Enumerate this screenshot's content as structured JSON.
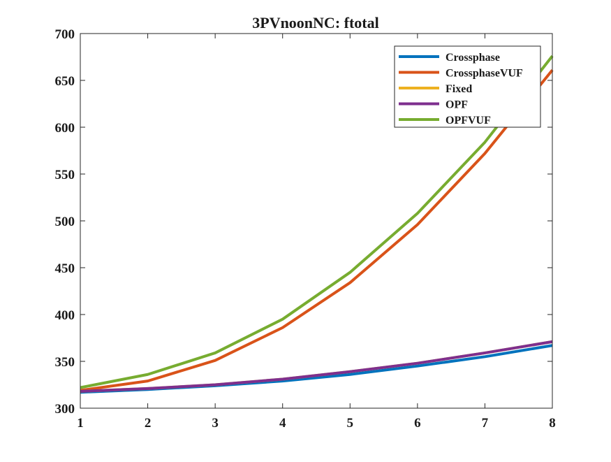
{
  "chart_data": {
    "type": "line",
    "title": "3PVnoonNC: ftotal",
    "xlabel": "",
    "ylabel": "",
    "x": [
      1,
      2,
      3,
      4,
      5,
      6,
      7,
      8
    ],
    "xlim": [
      1,
      8
    ],
    "ylim": [
      300,
      700
    ],
    "xticks": [
      1,
      2,
      3,
      4,
      5,
      6,
      7,
      8
    ],
    "yticks": [
      300,
      350,
      400,
      450,
      500,
      550,
      600,
      650,
      700
    ],
    "grid": false,
    "legend_placement": "top-right",
    "series": [
      {
        "name": "Crossphase",
        "color": "#0072BD",
        "values": [
          317,
          320,
          324,
          329,
          336,
          345,
          355,
          367
        ]
      },
      {
        "name": "CrossphaseVUF",
        "color": "#D95319",
        "values": [
          319,
          329,
          351,
          386,
          434,
          496,
          572,
          661
        ]
      },
      {
        "name": "Fixed",
        "color": "#EDB120",
        "values": [
          318,
          321,
          325,
          331,
          339,
          348,
          359,
          371
        ]
      },
      {
        "name": "OPF",
        "color": "#7E2F8E",
        "values": [
          318,
          321,
          325,
          331,
          339,
          348,
          359,
          371
        ]
      },
      {
        "name": "OPFVUF",
        "color": "#77AC30",
        "values": [
          322,
          336,
          359,
          395,
          445,
          508,
          584,
          676
        ]
      }
    ]
  }
}
